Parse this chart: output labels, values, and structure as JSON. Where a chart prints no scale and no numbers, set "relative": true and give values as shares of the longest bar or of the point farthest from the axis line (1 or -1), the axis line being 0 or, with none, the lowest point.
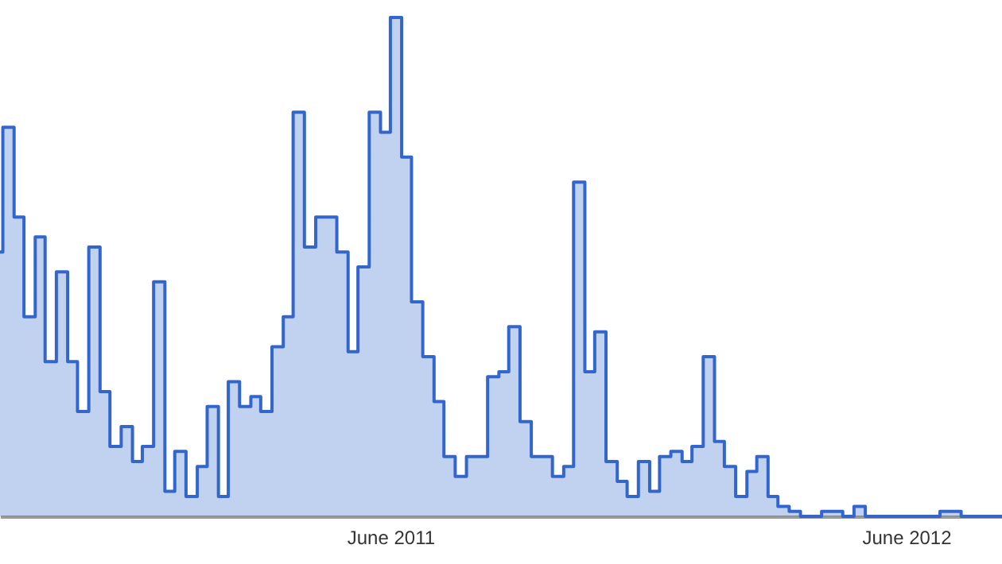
{
  "chart_data": {
    "type": "step",
    "relative": true,
    "xlim": [
      "2010-08-28",
      "2012-08-08"
    ],
    "xticks": [
      {
        "value": "2011-06-01",
        "label": "June 2011"
      },
      {
        "value": "2012-06-01",
        "label": "June 2012"
      }
    ],
    "x": [
      "2010-08-28",
      "2010-08-30",
      "2010-09-07",
      "2010-09-14",
      "2010-09-22",
      "2010-09-29",
      "2010-10-07",
      "2010-10-15",
      "2010-10-22",
      "2010-10-30",
      "2010-11-07",
      "2010-11-14",
      "2010-11-22",
      "2010-11-30",
      "2010-12-07",
      "2010-12-15",
      "2010-12-23",
      "2010-12-30",
      "2011-01-07",
      "2011-01-15",
      "2011-01-22",
      "2011-01-30",
      "2011-02-06",
      "2011-02-14",
      "2011-02-22",
      "2011-03-01",
      "2011-03-09",
      "2011-03-17",
      "2011-03-24",
      "2011-04-01",
      "2011-04-09",
      "2011-04-16",
      "2011-04-24",
      "2011-05-02",
      "2011-05-09",
      "2011-05-17",
      "2011-05-25",
      "2011-06-01",
      "2011-06-09",
      "2011-06-16",
      "2011-06-24",
      "2011-07-02",
      "2011-07-09",
      "2011-07-17",
      "2011-07-25",
      "2011-08-01",
      "2011-08-09",
      "2011-08-17",
      "2011-08-24",
      "2011-09-01",
      "2011-09-09",
      "2011-09-16",
      "2011-09-24",
      "2011-10-02",
      "2011-10-09",
      "2011-10-17",
      "2011-10-24",
      "2011-11-01",
      "2011-11-09",
      "2011-11-16",
      "2011-11-24",
      "2011-12-02",
      "2011-12-09",
      "2011-12-17",
      "2011-12-25",
      "2012-01-01",
      "2012-01-09",
      "2012-01-17",
      "2012-01-24",
      "2012-02-01",
      "2012-02-09",
      "2012-02-16",
      "2012-02-24",
      "2012-03-02",
      "2012-03-10",
      "2012-03-18",
      "2012-03-25",
      "2012-04-02",
      "2012-04-10",
      "2012-04-17",
      "2012-04-25",
      "2012-05-03",
      "2012-05-10",
      "2012-05-18",
      "2012-05-26",
      "2012-06-02",
      "2012-06-10",
      "2012-06-18",
      "2012-06-25",
      "2012-07-03",
      "2012-07-10",
      "2012-07-18",
      "2012-07-26",
      "2012-08-08"
    ],
    "series": [
      {
        "color": "#3366cc",
        "values": [
          0.53,
          0.78,
          0.6,
          0.4,
          0.56,
          0.31,
          0.49,
          0.31,
          0.21,
          0.54,
          0.25,
          0.14,
          0.18,
          0.11,
          0.14,
          0.47,
          0.05,
          0.13,
          0.04,
          0.1,
          0.22,
          0.04,
          0.27,
          0.22,
          0.24,
          0.21,
          0.34,
          0.4,
          0.81,
          0.54,
          0.6,
          0.6,
          0.53,
          0.33,
          0.5,
          0.81,
          0.77,
          1,
          0.72,
          0.43,
          0.32,
          0.23,
          0.12,
          0.08,
          0.12,
          0.12,
          0.28,
          0.29,
          0.38,
          0.19,
          0.12,
          0.12,
          0.08,
          0.1,
          0.67,
          0.29,
          0.37,
          0.11,
          0.07,
          0.04,
          0.11,
          0.05,
          0.12,
          0.13,
          0.11,
          0.14,
          0.32,
          0.15,
          0.1,
          0.04,
          0.09,
          0.12,
          0.04,
          0.02,
          0.01,
          0,
          0,
          0.01,
          0.01,
          0,
          0.02,
          0,
          0,
          0,
          0,
          0,
          0,
          0,
          0.01,
          0.01,
          0,
          0,
          0,
          0
        ]
      }
    ]
  }
}
